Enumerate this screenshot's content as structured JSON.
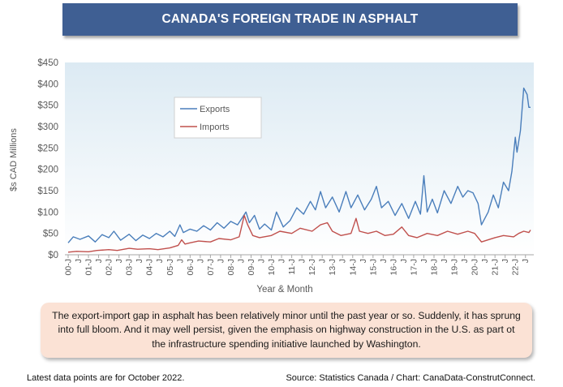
{
  "title": "CANADA'S FOREIGN TRADE IN ASPHALT",
  "callout": "The export-import gap in asphalt has been relatively minor until the past year or so. Suddenly, it has sprung into full bloom. And it may well persist, given the emphasis on highway construction in the U.S. as part ot the infrastructure spending initiative launched by Washington.",
  "footnote_left": "Latest data points are for October 2022.",
  "footnote_right": "Source: Statistics Canada / Chart: CanaData-ConstrutConnect.",
  "chart_data": {
    "type": "line",
    "xlabel": "Year & Month",
    "ylabel": "$s CAD Millions",
    "ylim": [
      0,
      450
    ],
    "yticks": [
      0,
      50,
      100,
      150,
      200,
      250,
      300,
      350,
      400,
      450
    ],
    "ytick_labels": [
      "$0",
      "$50",
      "$100",
      "$150",
      "$200",
      "$250",
      "$300",
      "$350",
      "$400",
      "$450"
    ],
    "x_start": "2000-01",
    "x_end": "2022-10",
    "xtick_labels": [
      "00-J",
      "J",
      "01-J",
      "J",
      "02-J",
      "J",
      "03-J",
      "J",
      "04-J",
      "J",
      "05-J",
      "J",
      "06-J",
      "J",
      "07-J",
      "J",
      "08-J",
      "J",
      "09-J",
      "J",
      "10-J",
      "J",
      "11-J",
      "J",
      "12-J",
      "J",
      "13-J",
      "J",
      "14-J",
      "J",
      "15-J",
      "J",
      "16-J",
      "J",
      "17-J",
      "J",
      "18-J",
      "J",
      "19-J",
      "J",
      "20-J",
      "J",
      "21-J",
      "J",
      "22-J",
      "J"
    ],
    "grid": false,
    "legend_position": "top-left",
    "series": [
      {
        "name": "Exports",
        "color": "#4a7ebb",
        "points": [
          [
            "2000-01",
            28
          ],
          [
            "2000-04",
            42
          ],
          [
            "2000-08",
            36
          ],
          [
            "2001-01",
            44
          ],
          [
            "2001-05",
            30
          ],
          [
            "2001-09",
            47
          ],
          [
            "2002-01",
            40
          ],
          [
            "2002-04",
            55
          ],
          [
            "2002-08",
            34
          ],
          [
            "2003-01",
            48
          ],
          [
            "2003-05",
            33
          ],
          [
            "2003-09",
            46
          ],
          [
            "2004-01",
            38
          ],
          [
            "2004-05",
            50
          ],
          [
            "2004-09",
            42
          ],
          [
            "2005-01",
            55
          ],
          [
            "2005-04",
            43
          ],
          [
            "2005-07",
            70
          ],
          [
            "2005-09",
            52
          ],
          [
            "2006-01",
            60
          ],
          [
            "2006-05",
            55
          ],
          [
            "2006-09",
            68
          ],
          [
            "2007-01",
            58
          ],
          [
            "2007-05",
            75
          ],
          [
            "2007-09",
            62
          ],
          [
            "2008-01",
            78
          ],
          [
            "2008-05",
            70
          ],
          [
            "2008-08",
            88
          ],
          [
            "2008-10",
            100
          ],
          [
            "2008-12",
            75
          ],
          [
            "2009-03",
            92
          ],
          [
            "2009-06",
            60
          ],
          [
            "2009-09",
            72
          ],
          [
            "2010-01",
            58
          ],
          [
            "2010-04",
            100
          ],
          [
            "2010-08",
            65
          ],
          [
            "2010-12",
            80
          ],
          [
            "2011-04",
            110
          ],
          [
            "2011-08",
            95
          ],
          [
            "2011-12",
            125
          ],
          [
            "2012-03",
            105
          ],
          [
            "2012-06",
            148
          ],
          [
            "2012-09",
            110
          ],
          [
            "2013-01",
            135
          ],
          [
            "2013-05",
            100
          ],
          [
            "2013-09",
            148
          ],
          [
            "2013-12",
            110
          ],
          [
            "2014-04",
            140
          ],
          [
            "2014-08",
            105
          ],
          [
            "2014-12",
            130
          ],
          [
            "2015-03",
            160
          ],
          [
            "2015-06",
            110
          ],
          [
            "2015-10",
            125
          ],
          [
            "2016-02",
            92
          ],
          [
            "2016-06",
            120
          ],
          [
            "2016-10",
            85
          ],
          [
            "2017-02",
            125
          ],
          [
            "2017-05",
            95
          ],
          [
            "2017-07",
            185
          ],
          [
            "2017-09",
            100
          ],
          [
            "2017-12",
            130
          ],
          [
            "2018-03",
            98
          ],
          [
            "2018-07",
            150
          ],
          [
            "2018-11",
            120
          ],
          [
            "2019-03",
            160
          ],
          [
            "2019-06",
            135
          ],
          [
            "2019-09",
            150
          ],
          [
            "2019-12",
            145
          ],
          [
            "2020-03",
            120
          ],
          [
            "2020-05",
            70
          ],
          [
            "2020-09",
            100
          ],
          [
            "2020-12",
            140
          ],
          [
            "2021-03",
            110
          ],
          [
            "2021-06",
            170
          ],
          [
            "2021-09",
            150
          ],
          [
            "2021-11",
            195
          ],
          [
            "2022-01",
            275
          ],
          [
            "2022-02",
            240
          ],
          [
            "2022-04",
            290
          ],
          [
            "2022-06",
            390
          ],
          [
            "2022-08",
            375
          ],
          [
            "2022-09",
            345
          ],
          [
            "2022-10",
            345
          ]
        ]
      },
      {
        "name": "Imports",
        "color": "#c0504d",
        "points": [
          [
            "2000-01",
            6
          ],
          [
            "2000-06",
            8
          ],
          [
            "2001-01",
            7
          ],
          [
            "2001-06",
            10
          ],
          [
            "2002-01",
            12
          ],
          [
            "2002-06",
            10
          ],
          [
            "2003-01",
            15
          ],
          [
            "2003-06",
            13
          ],
          [
            "2004-01",
            14
          ],
          [
            "2004-06",
            12
          ],
          [
            "2005-01",
            16
          ],
          [
            "2005-06",
            22
          ],
          [
            "2005-08",
            35
          ],
          [
            "2005-10",
            25
          ],
          [
            "2006-01",
            28
          ],
          [
            "2006-06",
            32
          ],
          [
            "2007-01",
            30
          ],
          [
            "2007-06",
            38
          ],
          [
            "2008-01",
            35
          ],
          [
            "2008-06",
            42
          ],
          [
            "2008-09",
            92
          ],
          [
            "2008-11",
            70
          ],
          [
            "2009-02",
            45
          ],
          [
            "2009-06",
            40
          ],
          [
            "2010-01",
            45
          ],
          [
            "2010-06",
            55
          ],
          [
            "2011-01",
            50
          ],
          [
            "2011-06",
            62
          ],
          [
            "2012-01",
            55
          ],
          [
            "2012-06",
            70
          ],
          [
            "2012-10",
            75
          ],
          [
            "2013-01",
            55
          ],
          [
            "2013-06",
            45
          ],
          [
            "2013-12",
            50
          ],
          [
            "2014-03",
            85
          ],
          [
            "2014-05",
            55
          ],
          [
            "2014-10",
            50
          ],
          [
            "2015-03",
            55
          ],
          [
            "2015-08",
            45
          ],
          [
            "2016-01",
            48
          ],
          [
            "2016-06",
            65
          ],
          [
            "2016-10",
            45
          ],
          [
            "2017-03",
            40
          ],
          [
            "2017-09",
            50
          ],
          [
            "2018-03",
            45
          ],
          [
            "2018-09",
            55
          ],
          [
            "2019-03",
            48
          ],
          [
            "2019-09",
            55
          ],
          [
            "2020-01",
            50
          ],
          [
            "2020-05",
            30
          ],
          [
            "2020-09",
            35
          ],
          [
            "2021-01",
            40
          ],
          [
            "2021-06",
            45
          ],
          [
            "2021-12",
            42
          ],
          [
            "2022-03",
            50
          ],
          [
            "2022-06",
            55
          ],
          [
            "2022-09",
            52
          ],
          [
            "2022-10",
            58
          ]
        ]
      }
    ]
  }
}
